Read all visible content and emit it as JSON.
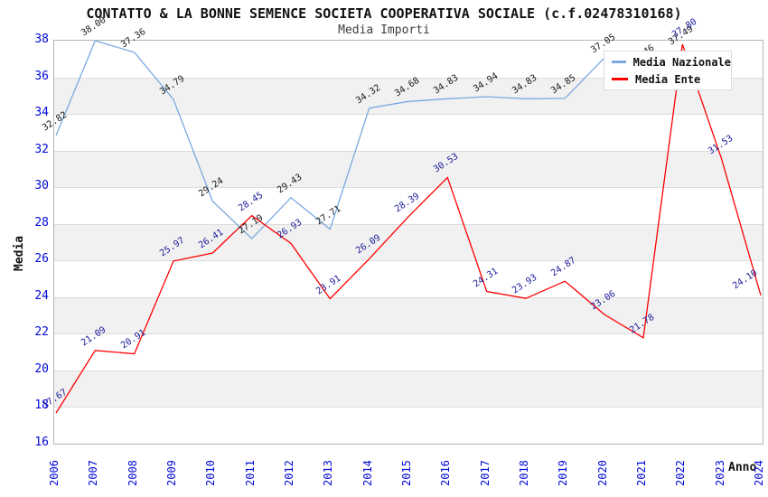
{
  "title": "CONTATTO & LA BONNE SEMENCE SOCIETA COOPERATIVA SOCIALE (c.f.02478310168)",
  "subtitle": "Media Importi",
  "legend": {
    "items": [
      {
        "label": "Media Nazionale",
        "color": "#7aaae0"
      },
      {
        "label": "Media Ente",
        "color": "#ff0000"
      }
    ]
  },
  "chart_data": {
    "type": "line",
    "title": "Media Importi",
    "xlabel": "Anno",
    "ylabel": "Media",
    "x": [
      2006,
      2007,
      2008,
      2009,
      2010,
      2011,
      2012,
      2013,
      2014,
      2015,
      2016,
      2017,
      2018,
      2019,
      2020,
      2021,
      2022,
      2023,
      2024
    ],
    "ylim": [
      16,
      38
    ],
    "ytick_step": 2,
    "grid": true,
    "band_color": "#f1f1f1",
    "tick_color": "#0009d6",
    "legend_position": "top-right",
    "series": [
      {
        "name": "Media Nazionale",
        "color": "#7aaae0",
        "label_color": "#1a1a1a",
        "values": [
          32.82,
          38.0,
          37.36,
          34.79,
          29.24,
          27.19,
          29.43,
          27.71,
          34.32,
          34.68,
          34.83,
          34.94,
          34.83,
          34.85,
          37.05,
          36.46,
          37.49,
          null,
          null
        ]
      },
      {
        "name": "Media Ente",
        "color": "#ff0000",
        "label_color": "#1b1b99",
        "values": [
          17.67,
          21.09,
          20.91,
          25.97,
          26.41,
          28.45,
          26.93,
          23.91,
          26.09,
          28.39,
          30.53,
          24.31,
          23.93,
          24.87,
          23.06,
          21.78,
          37.8,
          31.53,
          24.1
        ]
      }
    ]
  }
}
